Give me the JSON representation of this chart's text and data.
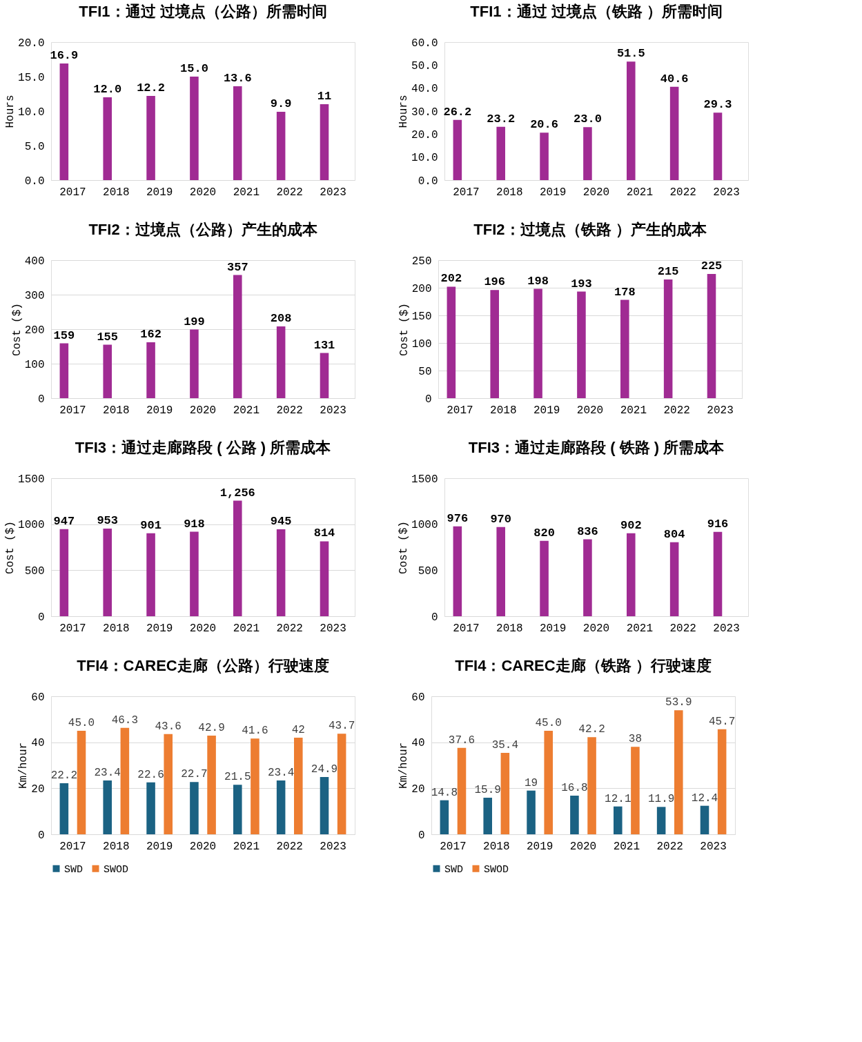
{
  "chart_data": [
    {
      "type": "bar",
      "title": "TFI1：通过 过境点（公路）所需时间",
      "ylabel": "Hours",
      "categories": [
        "2017",
        "2018",
        "2019",
        "2020",
        "2021",
        "2022",
        "2023"
      ],
      "ylim": [
        0,
        20
      ],
      "yticks": [
        {
          "value": 0,
          "label": "0.0"
        },
        {
          "value": 5,
          "label": "5.0"
        },
        {
          "value": 10,
          "label": "10.0"
        },
        {
          "value": 15,
          "label": "15.0"
        },
        {
          "value": 20,
          "label": "20.0"
        }
      ],
      "grid": false,
      "series": [
        {
          "color": "#a02b93",
          "values": [
            16.9,
            12.0,
            12.2,
            15.0,
            13.6,
            9.9,
            11
          ],
          "value_labels": [
            "16.9",
            "12.0",
            "12.2",
            "15.0",
            "13.6",
            "9.9",
            "11"
          ]
        }
      ]
    },
    {
      "type": "bar",
      "title": "TFI1：通过 过境点（铁路 ）所需时间",
      "ylabel": "Hours",
      "categories": [
        "2017",
        "2018",
        "2019",
        "2020",
        "2021",
        "2022",
        "2023"
      ],
      "ylim": [
        0,
        60
      ],
      "yticks": [
        {
          "value": 0,
          "label": "0.0"
        },
        {
          "value": 10,
          "label": "10.0"
        },
        {
          "value": 20,
          "label": "20.0"
        },
        {
          "value": 30,
          "label": "30.0"
        },
        {
          "value": 40,
          "label": "40.0"
        },
        {
          "value": 50,
          "label": "50.0"
        },
        {
          "value": 60,
          "label": "60.0"
        }
      ],
      "grid": false,
      "series": [
        {
          "color": "#a02b93",
          "values": [
            26.2,
            23.2,
            20.6,
            23.0,
            51.5,
            40.6,
            29.3
          ],
          "value_labels": [
            "26.2",
            "23.2",
            "20.6",
            "23.0",
            "51.5",
            "40.6",
            "29.3"
          ]
        }
      ]
    },
    {
      "type": "bar",
      "title": "TFI2：过境点（公路）产生的成本",
      "ylabel": "Cost ($)",
      "categories": [
        "2017",
        "2018",
        "2019",
        "2020",
        "2021",
        "2022",
        "2023"
      ],
      "ylim": [
        0,
        400
      ],
      "yticks": [
        0,
        100,
        200,
        300,
        400
      ],
      "grid": "y",
      "series": [
        {
          "color": "#a02b93",
          "values": [
            159,
            155,
            162,
            199,
            357,
            208,
            131
          ],
          "value_labels": [
            "159",
            "155",
            "162",
            "199",
            "357",
            "208",
            "131"
          ]
        }
      ]
    },
    {
      "type": "bar",
      "title": "TFI2：过境点（铁路 ）产生的成本",
      "ylabel": "Cost ($)",
      "categories": [
        "2017",
        "2018",
        "2019",
        "2020",
        "2021",
        "2022",
        "2023"
      ],
      "ylim": [
        0,
        250
      ],
      "yticks": [
        0,
        50,
        100,
        150,
        200,
        250
      ],
      "grid": "y",
      "series": [
        {
          "color": "#a02b93",
          "values": [
            202,
            196,
            198,
            193,
            178,
            215,
            225
          ],
          "value_labels": [
            "202",
            "196",
            "198",
            "193",
            "178",
            "215",
            "225"
          ]
        }
      ]
    },
    {
      "type": "bar",
      "title": "TFI3：通过走廊路段 ( 公路 ) 所需成本",
      "ylabel": "Cost ($)",
      "categories": [
        "2017",
        "2018",
        "2019",
        "2020",
        "2021",
        "2022",
        "2023"
      ],
      "ylim": [
        0,
        1500
      ],
      "yticks": [
        0,
        500,
        1000,
        1500
      ],
      "grid": "y",
      "series": [
        {
          "color": "#a02b93",
          "values": [
            947,
            953,
            901,
            918,
            1256,
            945,
            814
          ],
          "value_labels": [
            "947",
            "953",
            "901",
            "918",
            "1,256",
            "945",
            "814"
          ]
        }
      ]
    },
    {
      "type": "bar",
      "title": "TFI3：通过走廊路段 ( 铁路 ) 所需成本",
      "ylabel": "Cost ($)",
      "categories": [
        "2017",
        "2018",
        "2019",
        "2020",
        "2021",
        "2022",
        "2023"
      ],
      "ylim": [
        0,
        1500
      ],
      "yticks": [
        0,
        500,
        1000,
        1500
      ],
      "grid": false,
      "series": [
        {
          "color": "#a02b93",
          "values": [
            976,
            970,
            820,
            836,
            902,
            804,
            916
          ],
          "value_labels": [
            "976",
            "970",
            "820",
            "836",
            "902",
            "804",
            "916"
          ]
        }
      ]
    },
    {
      "type": "bar",
      "title": "TFI4：CAREC走廊（公路）行驶速度",
      "ylabel": "Km/hour",
      "categories": [
        "2017",
        "2018",
        "2019",
        "2020",
        "2021",
        "2022",
        "2023"
      ],
      "ylim": [
        0,
        60
      ],
      "yticks": [
        0,
        20,
        40,
        60
      ],
      "grid": "y",
      "legend": "bottom",
      "series": [
        {
          "name": "SWD",
          "color": "#1b6283",
          "values": [
            22.2,
            23.4,
            22.6,
            22.7,
            21.5,
            23.4,
            24.9
          ],
          "value_labels": [
            "22.2",
            "23.4",
            "22.6",
            "22.7",
            "21.5",
            "23.4",
            "24.9"
          ]
        },
        {
          "name": "SWOD",
          "color": "#ed7d31",
          "values": [
            45.0,
            46.3,
            43.6,
            42.9,
            41.6,
            42,
            43.7
          ],
          "value_labels": [
            "45.0",
            "46.3",
            "43.6",
            "42.9",
            "41.6",
            "42",
            "43.7"
          ]
        }
      ]
    },
    {
      "type": "bar",
      "title": "TFI4：CAREC走廊（铁路 ）行驶速度",
      "ylabel": "Km/hour",
      "categories": [
        "2017",
        "2018",
        "2019",
        "2020",
        "2021",
        "2022",
        "2023"
      ],
      "ylim": [
        0,
        60
      ],
      "yticks": [
        0,
        20,
        40,
        60
      ],
      "grid": "y",
      "legend": "bottom",
      "series": [
        {
          "name": "SWD",
          "color": "#1b6283",
          "values": [
            14.8,
            15.9,
            19,
            16.8,
            12.1,
            11.9,
            12.4
          ],
          "value_labels": [
            "14.8",
            "15.9",
            "19",
            "16.8",
            "12.1",
            "11.9",
            "12.4"
          ]
        },
        {
          "name": "SWOD",
          "color": "#ed7d31",
          "values": [
            37.6,
            35.4,
            45.0,
            42.2,
            38,
            53.9,
            45.7
          ],
          "value_labels": [
            "37.6",
            "35.4",
            "45.0",
            "42.2",
            "38",
            "53.9",
            "45.7"
          ]
        }
      ]
    }
  ]
}
